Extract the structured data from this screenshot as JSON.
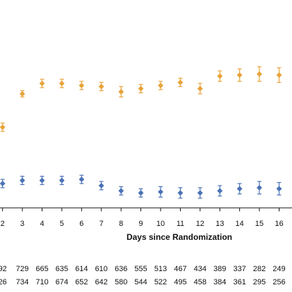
{
  "chart_data": {
    "type": "scatter",
    "xlabel": "Days since Randomization",
    "x": [
      2,
      3,
      4,
      5,
      6,
      7,
      8,
      9,
      10,
      11,
      12,
      13,
      14,
      15,
      16
    ],
    "xlim": [
      1.8,
      16.3
    ],
    "ylim": [
      0,
      100
    ],
    "grid": false,
    "series": [
      {
        "color": "#e8a33a",
        "values": [
          39,
          55,
          60,
          60,
          59,
          58.5,
          56,
          57.5,
          59,
          60.5,
          57.5,
          63.5,
          64,
          64.5,
          64
        ],
        "err": [
          2,
          1.5,
          2,
          2,
          2,
          2,
          2.5,
          2,
          2,
          2,
          2.5,
          2.5,
          3,
          3.5,
          3.5
        ]
      },
      {
        "color": "#4a72b5",
        "values": [
          12,
          13.5,
          13.5,
          13.5,
          14,
          11,
          8.5,
          7.5,
          8,
          7.5,
          7.5,
          8.5,
          9.5,
          10,
          9.5
        ],
        "err": [
          2,
          2,
          2,
          2,
          2,
          2,
          2,
          2,
          2.5,
          2.5,
          2.5,
          2.5,
          2.5,
          3,
          3
        ]
      }
    ],
    "risk_table": [
      [
        "92",
        "729",
        "665",
        "635",
        "614",
        "610",
        "636",
        "555",
        "513",
        "467",
        "434",
        "389",
        "337",
        "282",
        "249"
      ],
      [
        "26",
        "734",
        "710",
        "674",
        "652",
        "642",
        "580",
        "544",
        "522",
        "495",
        "458",
        "384",
        "361",
        "295",
        "256"
      ]
    ]
  }
}
